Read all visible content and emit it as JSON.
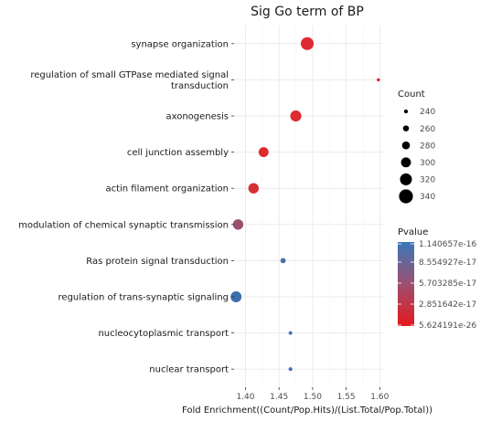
{
  "chart_data": {
    "type": "scatter",
    "title": "Sig Go term of BP",
    "xlabel": "Fold Enrichment((Count/Pop.Hits)/(List.Total/Pop.Total))",
    "ylabel": "",
    "xlim": [
      1.383,
      1.605
    ],
    "x_ticks": [
      "1.40",
      "1.45",
      "1.50",
      "1.55",
      "1.60"
    ],
    "x_tick_values": [
      1.4,
      1.45,
      1.5,
      1.55,
      1.6
    ],
    "grid": true,
    "categories": [
      "synapse organization",
      "regulation of small GTPase mediated signal\ntransduction",
      "axonogenesis",
      "cell junction assembly",
      "actin filament organization",
      "modulation of chemical synaptic transmission",
      "Ras protein signal transduction",
      "regulation of trans-synaptic signaling",
      "nucleocytoplasmic transport",
      "nuclear transport"
    ],
    "points": [
      {
        "term": "synapse organization",
        "x": 1.492,
        "count": 330,
        "color": "#e02a33"
      },
      {
        "term": "regulation of small GTPase mediated signal transduction",
        "x": 1.598,
        "count": 232,
        "color": "#e32127"
      },
      {
        "term": "axonogenesis",
        "x": 1.475,
        "count": 312,
        "color": "#df2b31"
      },
      {
        "term": "cell junction assembly",
        "x": 1.427,
        "count": 300,
        "color": "#de2a30"
      },
      {
        "term": "actin filament organization",
        "x": 1.412,
        "count": 305,
        "color": "#d72f37"
      },
      {
        "term": "modulation of chemical synaptic transmission",
        "x": 1.389,
        "count": 305,
        "color": "#9a4f71"
      },
      {
        "term": "Ras protein signal transduction",
        "x": 1.456,
        "count": 254,
        "color": "#4a70a8"
      },
      {
        "term": "regulation of trans-synaptic signaling",
        "x": 1.386,
        "count": 310,
        "color": "#3b6fab"
      },
      {
        "term": "nucleocytoplasmic transport",
        "x": 1.467,
        "count": 236,
        "color": "#3c74b2"
      },
      {
        "term": "nuclear transport",
        "x": 1.467,
        "count": 238,
        "color": "#3d75b3"
      }
    ],
    "legend_count": {
      "title": "Count",
      "values": [
        240,
        260,
        280,
        300,
        320,
        340
      ],
      "labels": [
        "240",
        "260",
        "280",
        "300",
        "320",
        "340"
      ]
    },
    "legend_pvalue": {
      "title": "Pvalue",
      "labels": [
        "1.140657e-16",
        "8.554927e-17",
        "5.703285e-17",
        "2.851642e-17",
        "5.624191e-26"
      ],
      "color_top": "#3a78b8",
      "color_bottom": "#e41a1c"
    },
    "colors": {
      "panel_bg": "#ffffff",
      "grid": "#ebebeb",
      "legend_dot": "#000000"
    }
  }
}
